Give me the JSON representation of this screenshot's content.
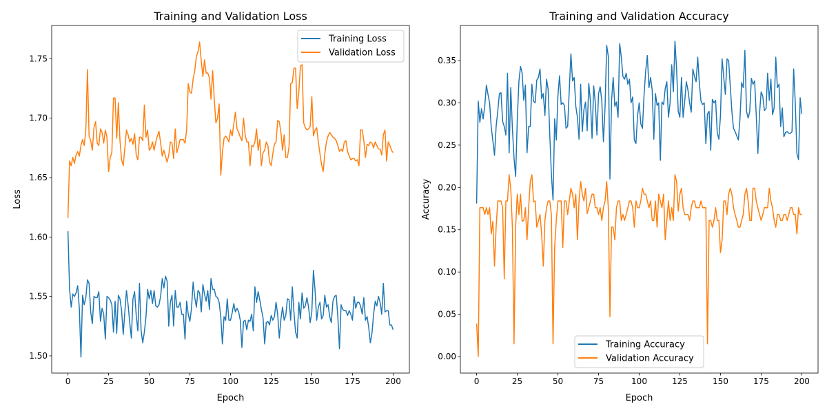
{
  "chart_data": [
    {
      "type": "line",
      "title": "Training and Validation Loss",
      "xlabel": "Epoch",
      "ylabel": "Loss",
      "xlim": [
        -10,
        210
      ],
      "ylim": [
        1.4855,
        1.778
      ],
      "xtick_labels": [
        "0",
        "25",
        "50",
        "75",
        "100",
        "125",
        "150",
        "175",
        "200"
      ],
      "ytick_labels": [
        "1.50",
        "1.55",
        "1.60",
        "1.65",
        "1.70",
        "1.75"
      ],
      "grid": false,
      "legend": "upper right",
      "series": [
        {
          "name": "Training Loss",
          "color": "#1f77b4",
          "values": [
            1.605,
            1.556,
            1.541,
            1.552,
            1.55,
            1.553,
            1.559,
            1.54,
            1.499,
            1.551,
            1.543,
            1.549,
            1.564,
            1.561,
            1.537,
            1.527,
            1.55,
            1.549,
            1.549,
            1.554,
            1.529,
            1.54,
            1.535,
            1.514,
            1.55,
            1.549,
            1.547,
            1.543,
            1.52,
            1.546,
            1.519,
            1.551,
            1.548,
            1.538,
            1.518,
            1.537,
            1.555,
            1.543,
            1.528,
            1.515,
            1.548,
            1.554,
            1.534,
            1.521,
            1.561,
            1.521,
            1.511,
            1.52,
            1.533,
            1.556,
            1.548,
            1.555,
            1.544,
            1.555,
            1.542,
            1.541,
            1.543,
            1.55,
            1.565,
            1.557,
            1.567,
            1.563,
            1.525,
            1.545,
            1.551,
            1.525,
            1.555,
            1.541,
            1.541,
            1.545,
            1.535,
            1.535,
            1.514,
            1.546,
            1.535,
            1.529,
            1.54,
            1.562,
            1.549,
            1.541,
            1.555,
            1.553,
            1.537,
            1.56,
            1.552,
            1.546,
            1.555,
            1.539,
            1.565,
            1.556,
            1.556,
            1.55,
            1.549,
            1.545,
            1.533,
            1.51,
            1.533,
            1.53,
            1.548,
            1.53,
            1.53,
            1.536,
            1.544,
            1.537,
            1.54,
            1.537,
            1.53,
            1.507,
            1.529,
            1.53,
            1.522,
            1.53,
            1.529,
            1.535,
            1.521,
            1.558,
            1.545,
            1.554,
            1.547,
            1.539,
            1.532,
            1.51,
            1.528,
            1.529,
            1.526,
            1.534,
            1.53,
            1.533,
            1.545,
            1.535,
            1.515,
            1.531,
            1.541,
            1.53,
            1.534,
            1.548,
            1.547,
            1.53,
            1.558,
            1.537,
            1.52,
            1.515,
            1.545,
            1.531,
            1.553,
            1.54,
            1.542,
            1.549,
            1.541,
            1.528,
            1.537,
            1.572,
            1.555,
            1.53,
            1.541,
            1.545,
            1.531,
            1.534,
            1.551,
            1.541,
            1.543,
            1.533,
            1.528,
            1.546,
            1.55,
            1.551,
            1.533,
            1.506,
            1.543,
            1.539,
            1.538,
            1.538,
            1.534,
            1.538,
            1.535,
            1.53,
            1.55,
            1.54,
            1.545,
            1.545,
            1.542,
            1.535,
            1.549,
            1.53,
            1.533,
            1.524,
            1.511,
            1.519,
            1.535,
            1.546,
            1.542,
            1.55,
            1.545,
            1.535,
            1.561,
            1.537,
            1.538,
            1.538,
            1.526,
            1.526,
            1.522
          ]
        },
        {
          "name": "Validation Loss",
          "color": "#ff7f0e",
          "values": [
            1.616,
            1.664,
            1.66,
            1.667,
            1.662,
            1.669,
            1.672,
            1.668,
            1.677,
            1.682,
            1.677,
            1.69,
            1.741,
            1.685,
            1.681,
            1.673,
            1.692,
            1.697,
            1.679,
            1.677,
            1.691,
            1.688,
            1.679,
            1.69,
            1.684,
            1.655,
            1.667,
            1.671,
            1.717,
            1.717,
            1.683,
            1.713,
            1.681,
            1.665,
            1.66,
            1.675,
            1.69,
            1.686,
            1.68,
            1.683,
            1.678,
            1.687,
            1.669,
            1.665,
            1.684,
            1.684,
            1.681,
            1.711,
            1.684,
            1.69,
            1.673,
            1.675,
            1.68,
            1.673,
            1.68,
            1.685,
            1.689,
            1.679,
            1.668,
            1.673,
            1.668,
            1.663,
            1.669,
            1.68,
            1.679,
            1.666,
            1.691,
            1.671,
            1.676,
            1.682,
            1.682,
            1.682,
            1.679,
            1.69,
            1.729,
            1.722,
            1.721,
            1.733,
            1.74,
            1.752,
            1.756,
            1.764,
            1.748,
            1.735,
            1.749,
            1.738,
            1.738,
            1.734,
            1.716,
            1.74,
            1.716,
            1.696,
            1.7,
            1.712,
            1.652,
            1.671,
            1.683,
            1.685,
            1.683,
            1.68,
            1.69,
            1.685,
            1.695,
            1.705,
            1.691,
            1.688,
            1.684,
            1.681,
            1.7,
            1.686,
            1.68,
            1.68,
            1.66,
            1.677,
            1.676,
            1.68,
            1.691,
            1.673,
            1.682,
            1.66,
            1.671,
            1.673,
            1.68,
            1.677,
            1.663,
            1.66,
            1.67,
            1.678,
            1.68,
            1.698,
            1.697,
            1.688,
            1.673,
            1.686,
            1.667,
            1.667,
            1.676,
            1.729,
            1.73,
            1.742,
            1.742,
            1.708,
            1.722,
            1.744,
            1.745,
            1.696,
            1.692,
            1.69,
            1.691,
            1.693,
            1.718,
            1.685,
            1.69,
            1.692,
            1.68,
            1.67,
            1.661,
            1.655,
            1.67,
            1.68,
            1.685,
            1.688,
            1.686,
            1.684,
            1.683,
            1.681,
            1.677,
            1.672,
            1.674,
            1.672,
            1.68,
            1.681,
            1.672,
            1.668,
            1.665,
            1.666,
            1.666,
            1.664,
            1.665,
            1.66,
            1.69,
            1.69,
            1.681,
            1.667,
            1.678,
            1.677,
            1.68,
            1.679,
            1.675,
            1.68,
            1.677,
            1.674,
            1.674,
            1.669,
            1.686,
            1.69,
            1.664,
            1.68,
            1.677,
            1.673,
            1.671
          ]
        }
      ]
    },
    {
      "type": "line",
      "title": "Training and Validation Accuracy",
      "xlabel": "Epoch",
      "ylabel": "Accuracy",
      "xlim": [
        -10,
        210
      ],
      "ylim": [
        -0.0195,
        0.3915
      ],
      "xtick_labels": [
        "0",
        "25",
        "50",
        "75",
        "100",
        "125",
        "150",
        "175",
        "200"
      ],
      "ytick_labels": [
        "0.00",
        "0.05",
        "0.10",
        "0.15",
        "0.20",
        "0.25",
        "0.30",
        "0.35"
      ],
      "grid": false,
      "legend": "lower center",
      "series": [
        {
          "name": "Training Accuracy",
          "color": "#1f77b4",
          "values": [
            0.181,
            0.302,
            0.277,
            0.293,
            0.281,
            0.296,
            0.321,
            0.31,
            0.3,
            0.271,
            0.255,
            0.238,
            0.272,
            0.29,
            0.311,
            0.312,
            0.278,
            0.272,
            0.262,
            0.335,
            0.241,
            0.318,
            0.27,
            0.235,
            0.213,
            0.28,
            0.325,
            0.343,
            0.335,
            0.303,
            0.321,
            0.241,
            0.272,
            0.272,
            0.322,
            0.302,
            0.3,
            0.327,
            0.33,
            0.34,
            0.305,
            0.311,
            0.285,
            0.328,
            0.316,
            0.262,
            0.215,
            0.185,
            0.281,
            0.256,
            0.308,
            0.332,
            0.298,
            0.3,
            0.297,
            0.27,
            0.272,
            0.316,
            0.358,
            0.326,
            0.33,
            0.296,
            0.283,
            0.257,
            0.322,
            0.266,
            0.292,
            0.301,
            0.267,
            0.323,
            0.302,
            0.258,
            0.32,
            0.3,
            0.262,
            0.311,
            0.319,
            0.302,
            0.254,
            0.295,
            0.368,
            0.355,
            0.21,
            0.303,
            0.33,
            0.296,
            0.301,
            0.283,
            0.37,
            0.354,
            0.331,
            0.328,
            0.335,
            0.322,
            0.328,
            0.3,
            0.307,
            0.256,
            0.252,
            0.285,
            0.3,
            0.275,
            0.27,
            0.31,
            0.338,
            0.356,
            0.318,
            0.33,
            0.315,
            0.257,
            0.311,
            0.297,
            0.3,
            0.232,
            0.301,
            0.298,
            0.317,
            0.325,
            0.283,
            0.3,
            0.345,
            0.313,
            0.373,
            0.34,
            0.29,
            0.283,
            0.33,
            0.283,
            0.302,
            0.325,
            0.315,
            0.3,
            0.289,
            0.34,
            0.331,
            0.325,
            0.354,
            0.323,
            0.302,
            0.298,
            0.3,
            0.252,
            0.287,
            0.29,
            0.244,
            0.304,
            0.3,
            0.303,
            0.265,
            0.257,
            0.285,
            0.352,
            0.33,
            0.31,
            0.352,
            0.35,
            0.32,
            0.29,
            0.27,
            0.266,
            0.261,
            0.256,
            0.282,
            0.324,
            0.318,
            0.362,
            0.29,
            0.282,
            0.29,
            0.329,
            0.322,
            0.326,
            0.285,
            0.24,
            0.287,
            0.313,
            0.308,
            0.291,
            0.293,
            0.335,
            0.303,
            0.328,
            0.286,
            0.294,
            0.354,
            0.318,
            0.322,
            0.272,
            0.294,
            0.26,
            0.265,
            0.266,
            0.264,
            0.264,
            0.266,
            0.34,
            0.3,
            0.24,
            0.233,
            0.306,
            0.287
          ]
        },
        {
          "name": "Validation Accuracy",
          "color": "#ff7f0e",
          "values": [
            0.039,
            0.0,
            0.176,
            0.176,
            0.176,
            0.168,
            0.176,
            0.168,
            0.176,
            0.145,
            0.16,
            0.107,
            0.153,
            0.184,
            0.184,
            0.184,
            0.176,
            0.092,
            0.184,
            0.184,
            0.215,
            0.199,
            0.153,
            0.015,
            0.153,
            0.192,
            0.168,
            0.192,
            0.16,
            0.161,
            0.176,
            0.138,
            0.176,
            0.207,
            0.215,
            0.183,
            0.184,
            0.153,
            0.16,
            0.168,
            0.145,
            0.107,
            0.161,
            0.176,
            0.184,
            0.184,
            0.168,
            0.015,
            0.13,
            0.161,
            0.184,
            0.184,
            0.184,
            0.129,
            0.184,
            0.184,
            0.168,
            0.184,
            0.199,
            0.192,
            0.176,
            0.192,
            0.138,
            0.184,
            0.207,
            0.192,
            0.184,
            0.199,
            0.169,
            0.176,
            0.184,
            0.192,
            0.192,
            0.176,
            0.176,
            0.168,
            0.176,
            0.161,
            0.176,
            0.184,
            0.207,
            0.176,
            0.047,
            0.153,
            0.153,
            0.138,
            0.176,
            0.184,
            0.184,
            0.161,
            0.168,
            0.161,
            0.168,
            0.176,
            0.184,
            0.184,
            0.176,
            0.153,
            0.184,
            0.176,
            0.176,
            0.184,
            0.199,
            0.192,
            0.192,
            0.184,
            0.176,
            0.184,
            0.161,
            0.161,
            0.184,
            0.153,
            0.192,
            0.184,
            0.176,
            0.192,
            0.138,
            0.161,
            0.184,
            0.161,
            0.176,
            0.161,
            0.215,
            0.207,
            0.172,
            0.192,
            0.199,
            0.176,
            0.168,
            0.168,
            0.168,
            0.161,
            0.176,
            0.184,
            0.184,
            0.176,
            0.176,
            0.176,
            0.184,
            0.176,
            0.176,
            0.176,
            0.015,
            0.161,
            0.161,
            0.153,
            0.161,
            0.176,
            0.161,
            0.161,
            0.123,
            0.138,
            0.184,
            0.184,
            0.168,
            0.192,
            0.199,
            0.192,
            0.176,
            0.168,
            0.161,
            0.153,
            0.153,
            0.161,
            0.168,
            0.192,
            0.199,
            0.184,
            0.161,
            0.161,
            0.199,
            0.199,
            0.184,
            0.176,
            0.168,
            0.161,
            0.168,
            0.176,
            0.176,
            0.176,
            0.199,
            0.184,
            0.176,
            0.161,
            0.153,
            0.168,
            0.168,
            0.161,
            0.161,
            0.168,
            0.168,
            0.161,
            0.168,
            0.176,
            0.176,
            0.168,
            0.168,
            0.145,
            0.176,
            0.168,
            0.168
          ]
        }
      ]
    }
  ]
}
